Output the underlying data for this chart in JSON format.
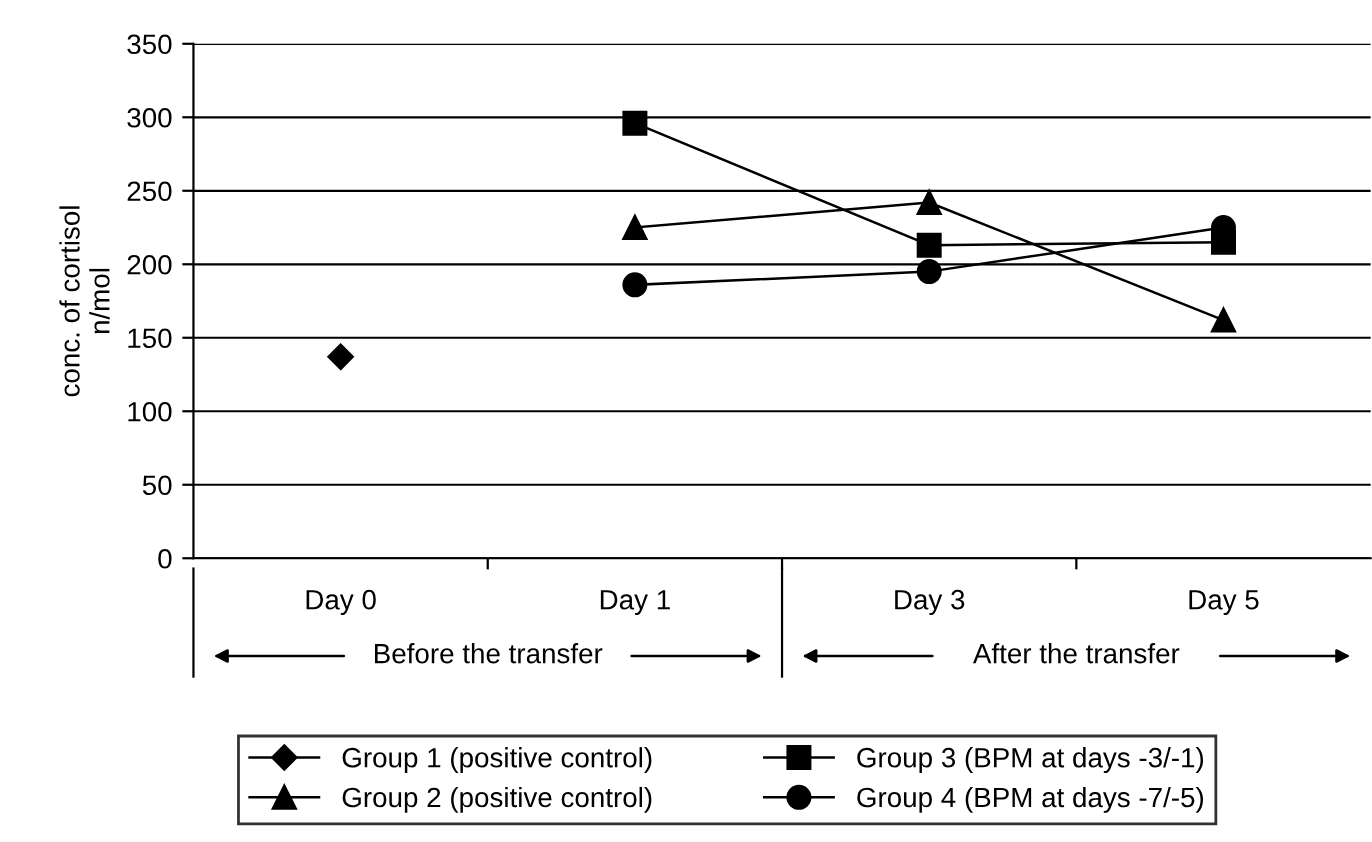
{
  "chart_data": {
    "type": "line",
    "ylabel": "conc. of cortisol\nn/mol",
    "categories": [
      "Day 0",
      "Day 1",
      "Day 3",
      "Day 5"
    ],
    "series": [
      {
        "name": "Group 1 (positive control)",
        "color": "#000000",
        "marker": "diamond",
        "values": [
          137,
          null,
          null,
          null
        ]
      },
      {
        "name": "Group 2 (positive control)",
        "color": "#000000",
        "marker": "triangle",
        "values": [
          null,
          225,
          242,
          162
        ]
      },
      {
        "name": "Group 3 (BPM at days -3/-1)",
        "color": "#000000",
        "marker": "square",
        "values": [
          null,
          296,
          213,
          215
        ]
      },
      {
        "name": "Group 4 (BPM at days -7/-5)",
        "color": "#000000",
        "marker": "circle",
        "values": [
          null,
          186,
          195,
          225
        ]
      }
    ],
    "ylim": [
      0,
      350
    ],
    "yticks": [
      0,
      50,
      100,
      150,
      200,
      250,
      300,
      350
    ],
    "grid": "y",
    "legend": "bottom",
    "line_style": "solid",
    "annotations": [
      "Before the transfer",
      "After the transfer"
    ]
  }
}
